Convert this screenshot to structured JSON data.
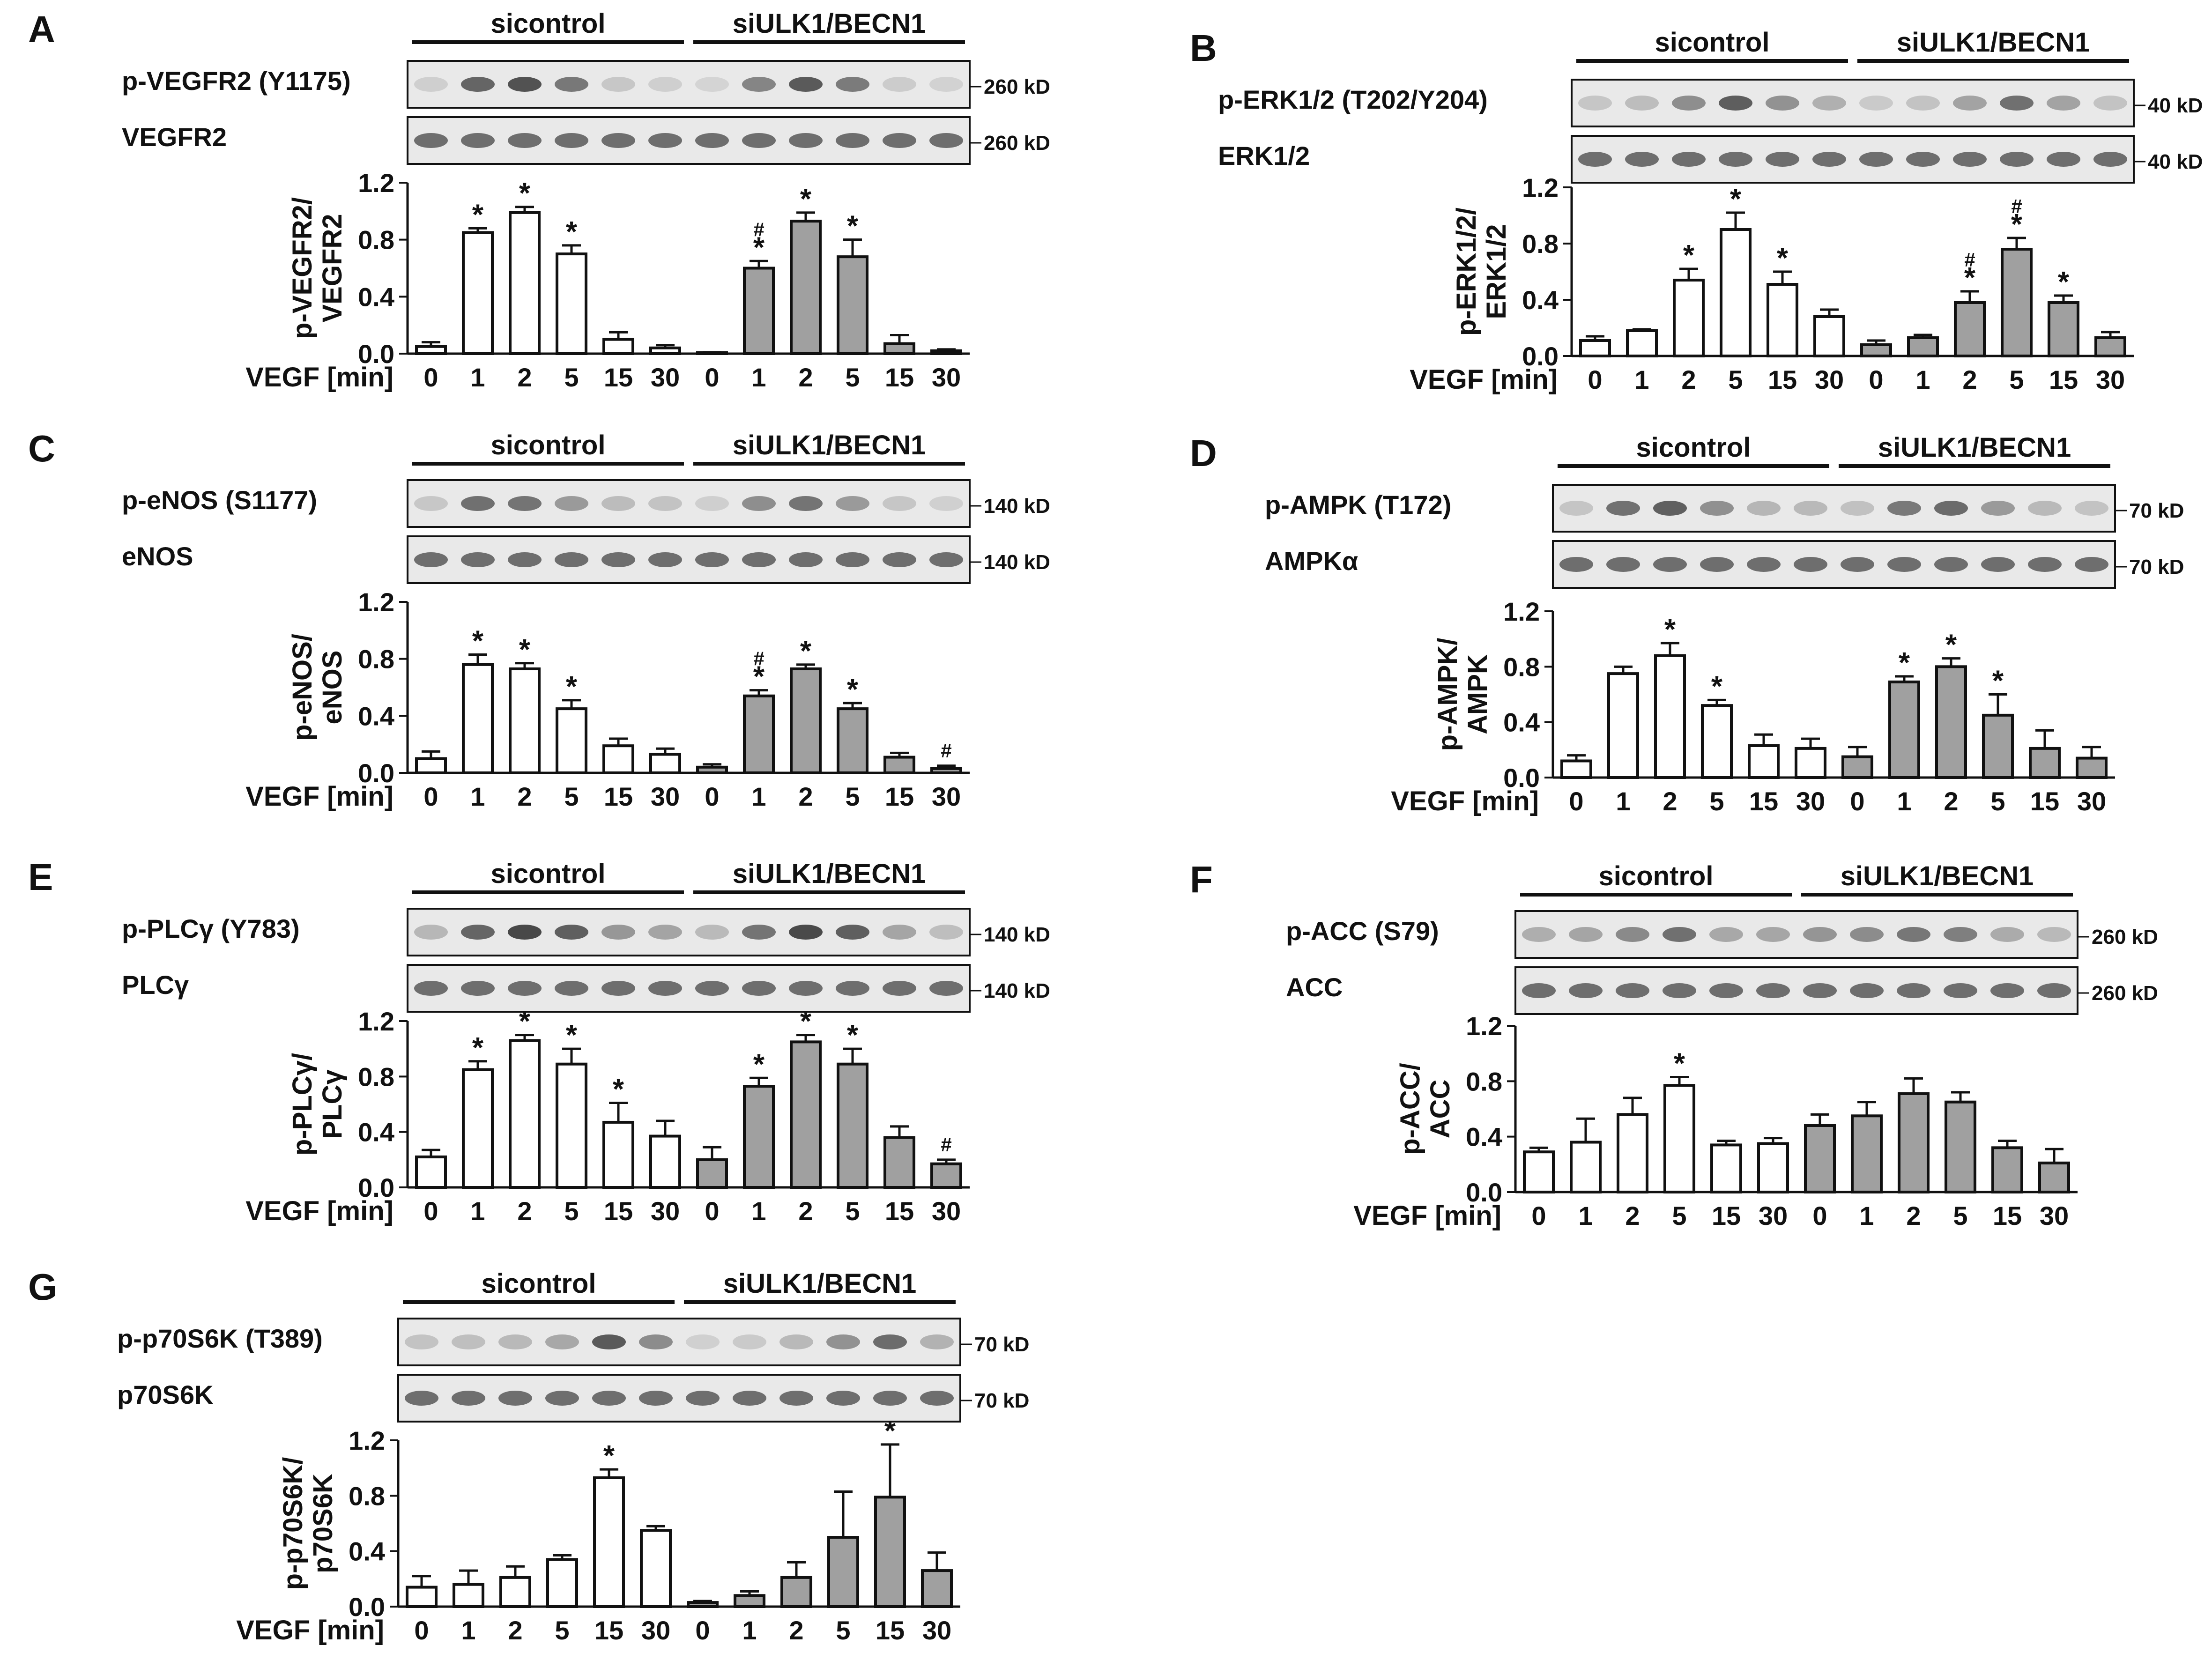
{
  "common": {
    "group_labels": [
      "sicontrol",
      "siULK1/BECN1"
    ],
    "x_axis_label": "VEGF [min]",
    "time_points": [
      "0",
      "1",
      "2",
      "5",
      "15",
      "30"
    ],
    "sig_star": "*",
    "sig_hash": "#"
  },
  "chart_data": [
    {
      "panel": "A",
      "type": "bar",
      "title": "p-VEGFR2/VEGFR2",
      "ylabel": [
        "p-VEGFR2/",
        "VEGFR2"
      ],
      "blot_labels": [
        "p-VEGFR2 (Y1175)",
        "VEGFR2"
      ],
      "blot_markers": [
        "260 kD",
        "260 kD"
      ],
      "xlabel": "VEGF [min]",
      "categories": [
        "0",
        "1",
        "2",
        "5",
        "15",
        "30"
      ],
      "ylim": [
        0,
        1.2
      ],
      "yticks": [
        "0.0",
        "0.4",
        "0.8",
        "1.2"
      ],
      "series": [
        {
          "name": "sicontrol",
          "values": [
            0.05,
            0.85,
            0.99,
            0.7,
            0.1,
            0.04
          ],
          "errors": [
            0.03,
            0.03,
            0.04,
            0.06,
            0.05,
            0.02
          ],
          "marks": [
            "",
            "*",
            "*",
            "*",
            "",
            ""
          ]
        },
        {
          "name": "siULK1/BECN1",
          "values": [
            0.0,
            0.6,
            0.93,
            0.68,
            0.07,
            0.02
          ],
          "errors": [
            0.01,
            0.05,
            0.06,
            0.12,
            0.06,
            0.01
          ],
          "marks": [
            "",
            "#*",
            "*",
            "*",
            "",
            ""
          ]
        }
      ]
    },
    {
      "panel": "B",
      "type": "bar",
      "title": "p-ERK1/2/ERK1/2",
      "ylabel": [
        "p-ERK1/2/",
        "ERK1/2"
      ],
      "blot_labels": [
        "p-ERK1/2 (T202/Y204)",
        "ERK1/2"
      ],
      "blot_markers": [
        "40 kD",
        "40 kD"
      ],
      "xlabel": "VEGF [min]",
      "categories": [
        "0",
        "1",
        "2",
        "5",
        "15",
        "30"
      ],
      "ylim": [
        0,
        1.2
      ],
      "yticks": [
        "0.0",
        "0.4",
        "0.8",
        "1.2"
      ],
      "series": [
        {
          "name": "sicontrol",
          "values": [
            0.11,
            0.18,
            0.54,
            0.9,
            0.51,
            0.28
          ],
          "errors": [
            0.03,
            0.01,
            0.08,
            0.12,
            0.09,
            0.05
          ],
          "marks": [
            "",
            "",
            "*",
            "*",
            "*",
            ""
          ]
        },
        {
          "name": "siULK1/BECN1",
          "values": [
            0.08,
            0.13,
            0.38,
            0.76,
            0.38,
            0.13
          ],
          "errors": [
            0.03,
            0.02,
            0.08,
            0.08,
            0.05,
            0.04
          ],
          "marks": [
            "",
            "",
            "#*",
            "#*",
            "*",
            ""
          ]
        }
      ]
    },
    {
      "panel": "C",
      "type": "bar",
      "title": "p-eNOS/eNOS",
      "ylabel": [
        "p-eNOS/",
        "eNOS"
      ],
      "blot_labels": [
        "p-eNOS (S1177)",
        "eNOS"
      ],
      "blot_markers": [
        "140 kD",
        "140 kD"
      ],
      "xlabel": "VEGF [min]",
      "categories": [
        "0",
        "1",
        "2",
        "5",
        "15",
        "30"
      ],
      "ylim": [
        0,
        1.2
      ],
      "yticks": [
        "0.0",
        "0.4",
        "0.8",
        "1.2"
      ],
      "series": [
        {
          "name": "sicontrol",
          "values": [
            0.1,
            0.76,
            0.73,
            0.45,
            0.19,
            0.13
          ],
          "errors": [
            0.05,
            0.07,
            0.04,
            0.06,
            0.05,
            0.04
          ],
          "marks": [
            "",
            "*",
            "*",
            "*",
            "",
            ""
          ]
        },
        {
          "name": "siULK1/BECN1",
          "values": [
            0.04,
            0.54,
            0.73,
            0.45,
            0.11,
            0.03
          ],
          "errors": [
            0.02,
            0.04,
            0.03,
            0.04,
            0.03,
            0.02
          ],
          "marks": [
            "",
            "#*",
            "*",
            "*",
            "",
            "#"
          ]
        }
      ]
    },
    {
      "panel": "D",
      "type": "bar",
      "title": "p-AMPK/AMPK",
      "ylabel": [
        "p-AMPK/",
        "AMPK"
      ],
      "blot_labels": [
        "p-AMPK (T172)",
        "AMPKα"
      ],
      "blot_markers": [
        "70 kD",
        "70 kD"
      ],
      "xlabel": "VEGF [min]",
      "categories": [
        "0",
        "1",
        "2",
        "5",
        "15",
        "30"
      ],
      "ylim": [
        0,
        1.2
      ],
      "yticks": [
        "0.0",
        "0.4",
        "0.8",
        "1.2"
      ],
      "series": [
        {
          "name": "sicontrol",
          "values": [
            0.12,
            0.75,
            0.88,
            0.52,
            0.23,
            0.21
          ],
          "errors": [
            0.04,
            0.05,
            0.09,
            0.04,
            0.08,
            0.07
          ],
          "marks": [
            "",
            "",
            "*",
            "*",
            "",
            ""
          ]
        },
        {
          "name": "siULK1/BECN1",
          "values": [
            0.15,
            0.69,
            0.8,
            0.45,
            0.21,
            0.14
          ],
          "errors": [
            0.07,
            0.04,
            0.06,
            0.15,
            0.13,
            0.08
          ],
          "marks": [
            "",
            "*",
            "*",
            "*",
            "",
            ""
          ]
        }
      ]
    },
    {
      "panel": "E",
      "type": "bar",
      "title": "p-PLCγ/PLCγ",
      "ylabel": [
        "p-PLCγ/",
        "PLCγ"
      ],
      "blot_labels": [
        "p-PLCγ (Y783)",
        "PLCγ"
      ],
      "blot_markers": [
        "140 kD",
        "140 kD"
      ],
      "xlabel": "VEGF [min]",
      "categories": [
        "0",
        "1",
        "2",
        "5",
        "15",
        "30"
      ],
      "ylim": [
        0,
        1.2
      ],
      "yticks": [
        "0.0",
        "0.4",
        "0.8",
        "1.2"
      ],
      "series": [
        {
          "name": "sicontrol",
          "values": [
            0.22,
            0.85,
            1.06,
            0.89,
            0.47,
            0.37
          ],
          "errors": [
            0.05,
            0.06,
            0.04,
            0.11,
            0.14,
            0.11
          ],
          "marks": [
            "",
            "*",
            "*",
            "*",
            "*",
            ""
          ]
        },
        {
          "name": "siULK1/BECN1",
          "values": [
            0.2,
            0.73,
            1.05,
            0.89,
            0.36,
            0.17
          ],
          "errors": [
            0.09,
            0.06,
            0.05,
            0.11,
            0.08,
            0.03
          ],
          "marks": [
            "",
            "*",
            "*",
            "*",
            "",
            "#"
          ]
        }
      ]
    },
    {
      "panel": "F",
      "type": "bar",
      "title": "p-ACC/ACC",
      "ylabel": [
        "p-ACC/",
        "ACC"
      ],
      "blot_labels": [
        "p-ACC (S79)",
        "ACC"
      ],
      "blot_markers": [
        "260 kD",
        "260 kD"
      ],
      "xlabel": "VEGF [min]",
      "categories": [
        "0",
        "1",
        "2",
        "5",
        "15",
        "30"
      ],
      "ylim": [
        0,
        1.2
      ],
      "yticks": [
        "0.0",
        "0.4",
        "0.8",
        "1.2"
      ],
      "series": [
        {
          "name": "sicontrol",
          "values": [
            0.29,
            0.36,
            0.56,
            0.77,
            0.34,
            0.35
          ],
          "errors": [
            0.03,
            0.17,
            0.12,
            0.06,
            0.03,
            0.04
          ],
          "marks": [
            "",
            "",
            "",
            "*",
            "",
            ""
          ]
        },
        {
          "name": "siULK1/BECN1",
          "values": [
            0.48,
            0.55,
            0.71,
            0.65,
            0.32,
            0.21
          ],
          "errors": [
            0.08,
            0.1,
            0.11,
            0.07,
            0.05,
            0.1
          ],
          "marks": [
            "",
            "",
            "",
            "",
            "",
            ""
          ]
        }
      ]
    },
    {
      "panel": "G",
      "type": "bar",
      "title": "p-p70S6K/p70S6K",
      "ylabel": [
        "p-p70S6K/",
        "p70S6K"
      ],
      "blot_labels": [
        "p-p70S6K (T389)",
        "p70S6K"
      ],
      "blot_markers": [
        "70 kD",
        "70 kD"
      ],
      "xlabel": "VEGF [min]",
      "categories": [
        "0",
        "1",
        "2",
        "5",
        "15",
        "30"
      ],
      "ylim": [
        0,
        1.2
      ],
      "yticks": [
        "0.0",
        "0.4",
        "0.8",
        "1.2"
      ],
      "series": [
        {
          "name": "sicontrol",
          "values": [
            0.14,
            0.16,
            0.21,
            0.34,
            0.93,
            0.55
          ],
          "errors": [
            0.08,
            0.1,
            0.08,
            0.03,
            0.06,
            0.03
          ],
          "marks": [
            "",
            "",
            "",
            "",
            "*",
            ""
          ]
        },
        {
          "name": "siULK1/BECN1",
          "values": [
            0.03,
            0.08,
            0.21,
            0.5,
            0.79,
            0.26
          ],
          "errors": [
            0.01,
            0.03,
            0.11,
            0.33,
            0.38,
            0.13
          ],
          "marks": [
            "",
            "",
            "",
            "",
            "*",
            ""
          ]
        }
      ]
    }
  ]
}
